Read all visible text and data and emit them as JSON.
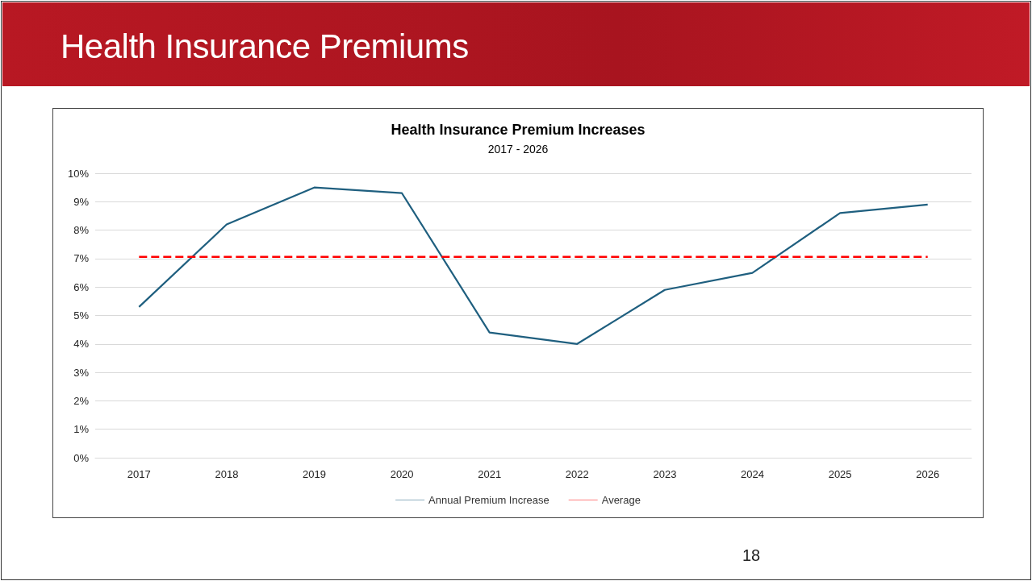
{
  "chart_data": {
    "type": "line",
    "title": "Health Insurance Premium Increases",
    "subtitle": "2017 - 2026",
    "annotations": [
      "Health Insurance Premiums",
      "18"
    ],
    "categories": [
      "2017",
      "2018",
      "2019",
      "2020",
      "2021",
      "2022",
      "2023",
      "2024",
      "2025",
      "2026"
    ],
    "series": [
      {
        "name": "Annual Premium Increase",
        "color": "#1f5f7f",
        "line_style": "solid",
        "values": [
          5.3,
          8.2,
          9.5,
          9.3,
          4.4,
          4.0,
          5.9,
          6.5,
          8.6,
          8.9
        ]
      },
      {
        "name": "Average",
        "color": "#ff0000",
        "line_style": "dashed",
        "values": [
          7.06,
          7.06,
          7.06,
          7.06,
          7.06,
          7.06,
          7.06,
          7.06,
          7.06,
          7.06
        ]
      }
    ],
    "ylim": [
      0,
      10
    ],
    "yticks": [
      {
        "value": 0,
        "label": "0%"
      },
      {
        "value": 1,
        "label": "1%"
      },
      {
        "value": 2,
        "label": "2%"
      },
      {
        "value": 3,
        "label": "3%"
      },
      {
        "value": 4,
        "label": "4%"
      },
      {
        "value": 5,
        "label": "5%"
      },
      {
        "value": 6,
        "label": "6%"
      },
      {
        "value": 7,
        "label": "7%"
      },
      {
        "value": 8,
        "label": "8%"
      },
      {
        "value": 9,
        "label": "9%"
      },
      {
        "value": 10,
        "label": "10%"
      }
    ],
    "grid": "y",
    "legend": "bottom",
    "marker": "none"
  }
}
